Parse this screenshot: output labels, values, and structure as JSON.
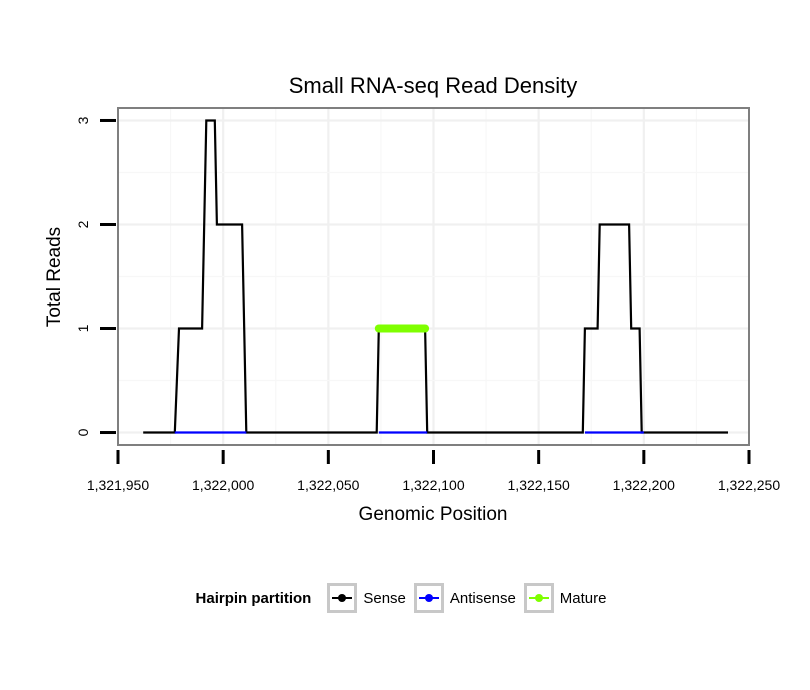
{
  "chart_data": {
    "type": "line",
    "title": "Small RNA-seq Read Density",
    "xlabel": "Genomic Position",
    "ylabel": "Total Reads",
    "xlim": [
      1321950,
      1322250
    ],
    "ylim": [
      -0.12,
      3.12
    ],
    "x_ticks": [
      1321950,
      1322000,
      1322050,
      1322100,
      1322150,
      1322200,
      1322250
    ],
    "x_tick_labels": [
      "1,321,950",
      "1,322,000",
      "1,322,050",
      "1,322,100",
      "1,322,150",
      "1,322,200",
      "1,322,250"
    ],
    "y_ticks": [
      0,
      1,
      2,
      3
    ],
    "y_tick_labels": [
      "0",
      "1",
      "2",
      "3"
    ],
    "grid": true,
    "legend_position": "bottom",
    "series": [
      {
        "name": "Sense",
        "color": "#000000",
        "x": [
          1321962,
          1321977,
          1321979,
          1321990,
          1321991,
          1321992,
          1321996,
          1321997,
          1322009,
          1322010,
          1322011,
          1322073,
          1322074,
          1322075,
          1322095,
          1322096,
          1322097,
          1322171,
          1322172,
          1322173,
          1322178,
          1322179,
          1322180,
          1322193,
          1322194,
          1322195,
          1322198,
          1322199,
          1322200,
          1322240
        ],
        "values": [
          0,
          0,
          1,
          1,
          2,
          3,
          3,
          2,
          2,
          1,
          0,
          0,
          1,
          1,
          1,
          1,
          0,
          0,
          1,
          1,
          1,
          2,
          2,
          2,
          1,
          1,
          1,
          0,
          0,
          0
        ]
      },
      {
        "name": "Antisense",
        "color": "#0000ff",
        "segments": [
          [
            1321977,
            1322011
          ],
          [
            1322074,
            1322097
          ],
          [
            1322172,
            1322200
          ]
        ],
        "value": 0
      },
      {
        "name": "Mature",
        "color": "#7fff00",
        "segments": [
          [
            1322074,
            1322096
          ]
        ],
        "value": 1
      }
    ]
  },
  "legend": {
    "title": "Hairpin partition",
    "items": [
      {
        "label": "Sense",
        "color": "#000000"
      },
      {
        "label": "Antisense",
        "color": "#0000ff"
      },
      {
        "label": "Mature",
        "color": "#7fff00"
      }
    ]
  }
}
